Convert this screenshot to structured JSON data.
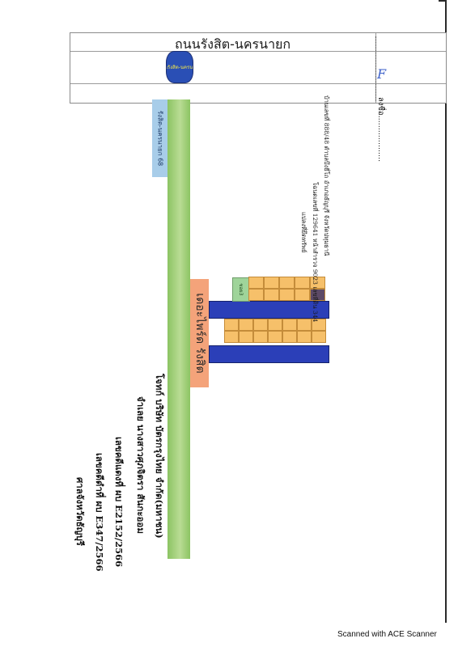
{
  "road": {
    "name": "ถนนรังสิต-นครนายก",
    "marker": "ถนนรังสิต-นครนายก"
  },
  "signature": {
    "mark": "F",
    "label": "ลงชื่อ..................."
  },
  "soi_sign": {
    "text": "รังสิต-นครนายก 68"
  },
  "project": {
    "name": "เดอะไพร์ด รังสิต"
  },
  "soi3": {
    "text": "ซอย3"
  },
  "deed": {
    "line1": "แปลงที่ยึดทรัพย์",
    "line2": "โฉนดเลขที่ 129641  หน้าสำรวจ 9023  เลขที่ดิน 344",
    "line3": "บ้านเลขที่ 888/48  ตำบลบึงยี่โถ  อำเภอธัญบุรี  จังหวัดปทุมธานี"
  },
  "case": {
    "court": "ศาลจังหวัดธัญบุรี",
    "black_case": "เลขคดีดำที่ ผบ E347/2566",
    "red_case": "เลขคดีแดงที่ ผบ E2152/2566",
    "defendant": "จำเลย   นางสาวศุภจิตรา  สันกะออม",
    "plaintiff": "โจทก์   บริษัท  บัตรกรุงไทย  จำกัด(มหาชน)"
  },
  "footer": {
    "scanner": "Scanned with ACE Scanner"
  }
}
